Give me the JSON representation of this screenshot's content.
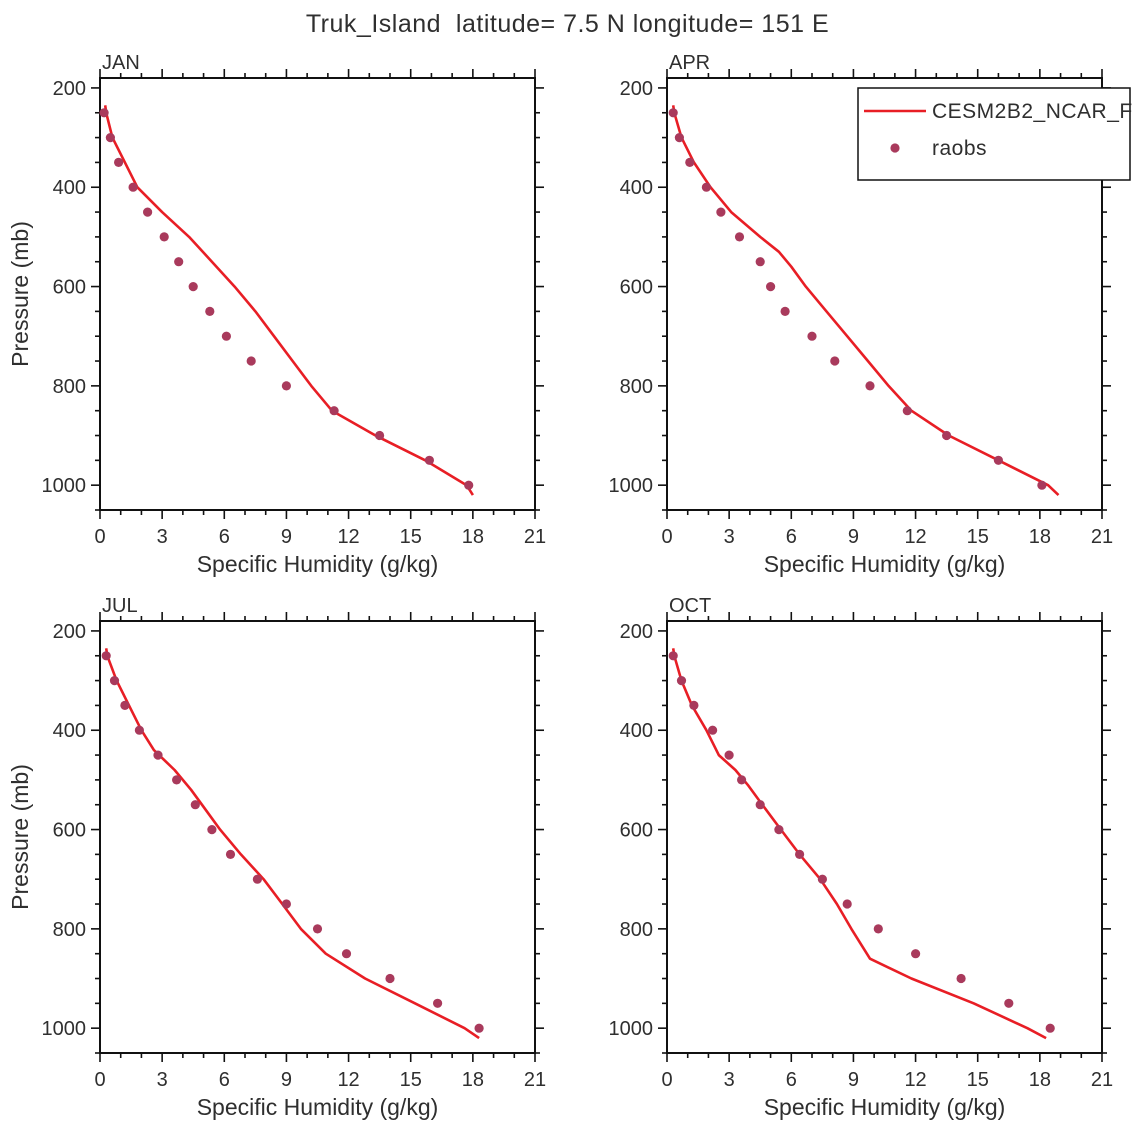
{
  "title": "Truk_Island  latitude= 7.5 N longitude= 151 E",
  "colors": {
    "model_line": "#e81e25",
    "raobs_dot": "#a93a5c",
    "axis": "#111111",
    "text": "#2f2f2f"
  },
  "axes": {
    "xlabel": "Specific Humidity (g/kg)",
    "ylabel": "Pressure (mb)",
    "xlim": [
      0,
      21
    ],
    "xticks": [
      0,
      3,
      6,
      9,
      12,
      15,
      18,
      21
    ],
    "x_minor_step": 1,
    "ylim": [
      180,
      1050
    ],
    "yticks": [
      200,
      400,
      600,
      800,
      1000
    ],
    "y_minor_step": 50,
    "y_inverted": true,
    "grid": false
  },
  "legend": {
    "position": "top-right-APR-panel",
    "entries": [
      {
        "label": "CESM2B2_NCAR_F",
        "type": "line"
      },
      {
        "label": "raobs",
        "type": "dot"
      }
    ]
  },
  "chart_data": [
    {
      "type": "line",
      "panel": "JAN",
      "series": [
        {
          "name": "CESM2B2_NCAR_F",
          "kind": "line",
          "pressure": [
            235,
            250,
            300,
            350,
            400,
            450,
            500,
            550,
            600,
            650,
            700,
            750,
            800,
            850,
            900,
            950,
            1000,
            1020
          ],
          "q": [
            0.25,
            0.3,
            0.6,
            1.2,
            1.8,
            3.0,
            4.3,
            5.4,
            6.5,
            7.5,
            8.4,
            9.3,
            10.2,
            11.2,
            13.3,
            15.7,
            17.7,
            18.0
          ]
        },
        {
          "name": "raobs",
          "kind": "scatter",
          "pressure": [
            250,
            300,
            350,
            400,
            450,
            500,
            550,
            600,
            650,
            700,
            750,
            800,
            850,
            900,
            950,
            1000
          ],
          "q": [
            0.2,
            0.5,
            0.9,
            1.6,
            2.3,
            3.1,
            3.8,
            4.5,
            5.3,
            6.1,
            7.3,
            9.0,
            11.3,
            13.5,
            15.9,
            17.8
          ]
        }
      ]
    },
    {
      "type": "line",
      "panel": "APR",
      "legend": true,
      "series": [
        {
          "name": "CESM2B2_NCAR_F",
          "kind": "line",
          "pressure": [
            235,
            250,
            300,
            350,
            400,
            450,
            500,
            530,
            560,
            600,
            650,
            700,
            750,
            800,
            850,
            900,
            950,
            1000,
            1020
          ],
          "q": [
            0.3,
            0.35,
            0.7,
            1.3,
            2.1,
            3.1,
            4.5,
            5.4,
            6.0,
            6.7,
            7.7,
            8.7,
            9.7,
            10.7,
            11.8,
            13.6,
            16.0,
            18.4,
            18.9
          ]
        },
        {
          "name": "raobs",
          "kind": "scatter",
          "pressure": [
            250,
            300,
            350,
            400,
            450,
            500,
            550,
            600,
            650,
            700,
            750,
            800,
            850,
            900,
            950,
            1000
          ],
          "q": [
            0.3,
            0.6,
            1.1,
            1.9,
            2.6,
            3.5,
            4.5,
            5.0,
            5.7,
            7.0,
            8.1,
            9.8,
            11.6,
            13.5,
            16.0,
            18.1
          ]
        }
      ]
    },
    {
      "type": "line",
      "panel": "JUL",
      "series": [
        {
          "name": "CESM2B2_NCAR_F",
          "kind": "line",
          "pressure": [
            235,
            250,
            300,
            350,
            400,
            440,
            480,
            520,
            560,
            600,
            650,
            700,
            750,
            800,
            850,
            900,
            950,
            1000,
            1020
          ],
          "q": [
            0.3,
            0.35,
            0.8,
            1.4,
            2.0,
            2.6,
            3.6,
            4.4,
            5.1,
            5.8,
            6.8,
            7.9,
            8.8,
            9.7,
            10.9,
            12.8,
            15.2,
            17.6,
            18.3
          ]
        },
        {
          "name": "raobs",
          "kind": "scatter",
          "pressure": [
            250,
            300,
            350,
            400,
            450,
            500,
            550,
            600,
            650,
            700,
            750,
            800,
            850,
            900,
            950,
            1000
          ],
          "q": [
            0.3,
            0.7,
            1.2,
            1.9,
            2.8,
            3.7,
            4.6,
            5.4,
            6.3,
            7.6,
            9.0,
            10.5,
            11.9,
            14.0,
            16.3,
            18.3
          ]
        }
      ]
    },
    {
      "type": "line",
      "panel": "OCT",
      "series": [
        {
          "name": "CESM2B2_NCAR_F",
          "kind": "line",
          "pressure": [
            235,
            250,
            300,
            350,
            400,
            450,
            480,
            510,
            550,
            600,
            650,
            700,
            750,
            800,
            860,
            900,
            950,
            1000,
            1020
          ],
          "q": [
            0.3,
            0.35,
            0.7,
            1.2,
            1.9,
            2.5,
            3.3,
            3.9,
            4.6,
            5.5,
            6.4,
            7.4,
            8.2,
            8.9,
            9.8,
            11.8,
            14.8,
            17.4,
            18.3
          ]
        },
        {
          "name": "raobs",
          "kind": "scatter",
          "pressure": [
            250,
            300,
            350,
            400,
            450,
            500,
            550,
            600,
            650,
            700,
            750,
            800,
            850,
            900,
            950,
            1000
          ],
          "q": [
            0.3,
            0.7,
            1.3,
            2.2,
            3.0,
            3.6,
            4.5,
            5.4,
            6.4,
            7.5,
            8.7,
            10.2,
            12.0,
            14.2,
            16.5,
            18.5
          ]
        }
      ]
    }
  ]
}
